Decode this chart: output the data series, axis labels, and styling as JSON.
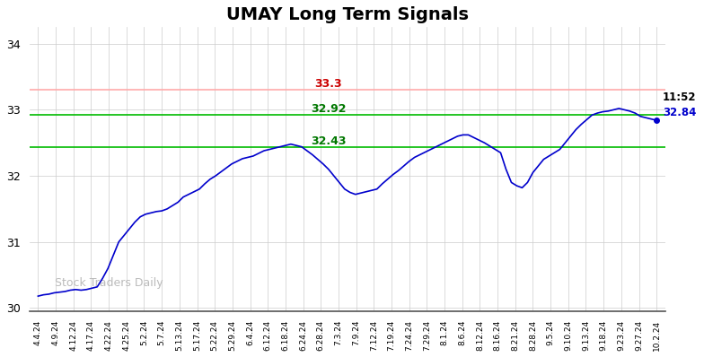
{
  "title": "UMAY Long Term Signals",
  "title_fontsize": 14,
  "title_fontweight": "bold",
  "ylim": [
    29.95,
    34.25
  ],
  "yticks": [
    30,
    31,
    32,
    33,
    34
  ],
  "red_line": 33.3,
  "green_line_upper": 32.92,
  "green_line_lower": 32.43,
  "red_line_label": "33.3",
  "green_upper_label": "32.92",
  "green_lower_label": "32.43",
  "annotation_time": "11:52",
  "annotation_price": "32.84",
  "watermark": "Stock Traders Daily",
  "line_color": "#0000cc",
  "red_line_color": "#ffaaaa",
  "red_text_color": "#cc0000",
  "green_line_color": "#00bb00",
  "green_text_color": "#007700",
  "background_color": "#ffffff",
  "grid_color": "#cccccc",
  "xtick_labels": [
    "4.4.24",
    "4.9.24",
    "4.12.24",
    "4.17.24",
    "4.22.24",
    "4.25.24",
    "5.2.24",
    "5.7.24",
    "5.13.24",
    "5.17.24",
    "5.22.24",
    "5.29.24",
    "6.4.24",
    "6.12.24",
    "6.18.24",
    "6.24.24",
    "6.28.24",
    "7.3.24",
    "7.9.24",
    "7.12.24",
    "7.19.24",
    "7.24.24",
    "7.29.24",
    "8.1.24",
    "8.6.24",
    "8.12.24",
    "8.16.24",
    "8.21.24",
    "8.28.24",
    "9.5.24",
    "9.10.24",
    "9.13.24",
    "9.18.24",
    "9.23.24",
    "9.27.24",
    "10.2.24"
  ],
  "price_data": [
    30.18,
    30.2,
    30.21,
    30.23,
    30.24,
    30.25,
    30.27,
    30.28,
    30.27,
    30.28,
    30.3,
    30.32,
    30.45,
    30.6,
    30.8,
    31.0,
    31.1,
    31.2,
    31.3,
    31.38,
    31.42,
    31.44,
    31.46,
    31.47,
    31.5,
    31.55,
    31.6,
    31.68,
    31.72,
    31.76,
    31.8,
    31.88,
    31.95,
    32.0,
    32.06,
    32.12,
    32.18,
    32.22,
    32.26,
    32.28,
    32.3,
    32.34,
    32.38,
    32.4,
    32.42,
    32.44,
    32.46,
    32.48,
    32.46,
    32.44,
    32.38,
    32.32,
    32.25,
    32.18,
    32.1,
    32.0,
    31.9,
    31.8,
    31.75,
    31.72,
    31.74,
    31.76,
    31.78,
    31.8,
    31.88,
    31.95,
    32.02,
    32.08,
    32.15,
    32.22,
    32.28,
    32.32,
    32.36,
    32.4,
    32.44,
    32.48,
    32.52,
    32.56,
    32.6,
    32.62,
    32.62,
    32.58,
    32.54,
    32.5,
    32.45,
    32.4,
    32.35,
    32.1,
    31.9,
    31.85,
    31.82,
    31.9,
    32.05,
    32.15,
    32.25,
    32.3,
    32.35,
    32.4,
    32.5,
    32.6,
    32.7,
    32.78,
    32.85,
    32.92,
    32.95,
    32.97,
    32.98,
    33.0,
    33.02,
    33.0,
    32.98,
    32.95,
    32.9,
    32.88,
    32.86,
    32.84
  ]
}
